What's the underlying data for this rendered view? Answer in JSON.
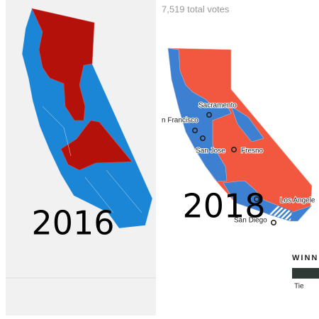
{
  "left_map": {
    "year": "2016"
  },
  "right_map": {
    "year": "2018",
    "total_votes": "7,519 total votes",
    "cities": [
      "Sacramento",
      "n Francisco",
      "San Jose",
      "Fresno",
      "Los Angele",
      "San Diego"
    ]
  },
  "legend": {
    "title": "WINN",
    "label": "Tie"
  }
}
